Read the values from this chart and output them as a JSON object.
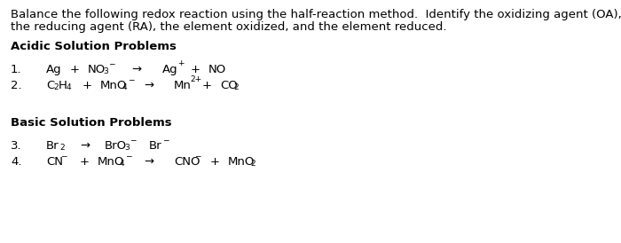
{
  "background_color": "#ffffff",
  "fig_width": 7.0,
  "fig_height": 2.74,
  "dpi": 100,
  "intro_line1": "Balance the following redox reaction using the half-reaction method.  Identify the oxidizing agent (OA),",
  "intro_line2": "the reducing agent (RA), the element oxidized, and the element reduced.",
  "section1_title": "Acidic Solution Problems",
  "section2_title": "Basic Solution Problems",
  "fs": 9.5,
  "fs_sub": 6.5
}
